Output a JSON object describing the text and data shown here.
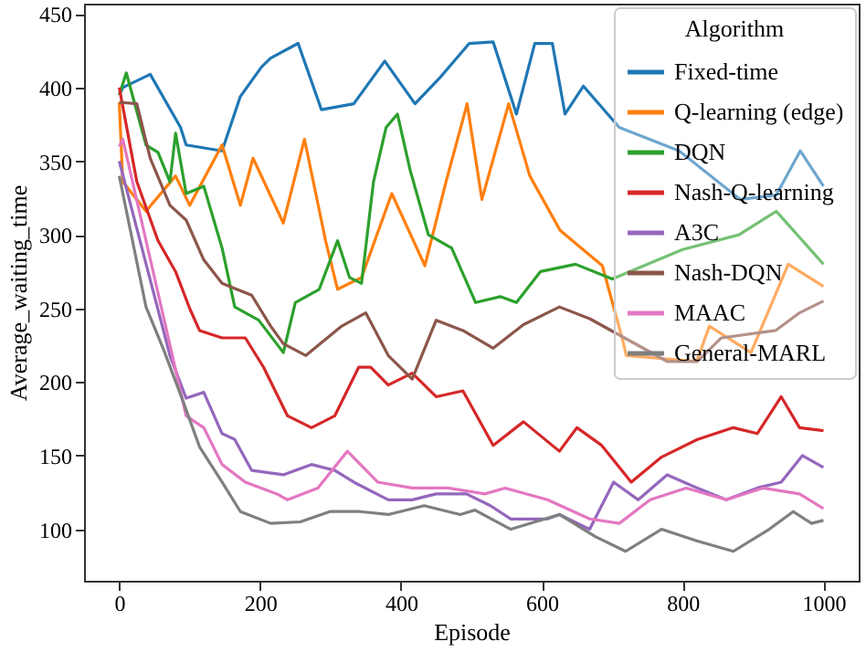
{
  "chart_data": {
    "type": "line",
    "xlabel": "Episode",
    "ylabel": "Average_waiting_time",
    "legend_title": "Algorithm",
    "legend": "top right",
    "grid": false,
    "xlim": [
      -50,
      1050
    ],
    "ylim": [
      65,
      457
    ],
    "xticks": [
      0,
      200,
      400,
      600,
      800,
      1000
    ],
    "yticks": [
      100,
      150,
      200,
      250,
      300,
      350,
      400,
      450
    ],
    "series": [
      {
        "name": "Fixed-time",
        "color": "#1f77b4",
        "x": [
          0,
          5,
          44,
          87,
          95,
          146,
          172,
          202,
          215,
          254,
          287,
          333,
          377,
          420,
          454,
          497,
          531,
          564,
          590,
          615,
          633,
          659,
          710,
          795,
          882,
          933,
          967,
          1000
        ],
        "values": [
          395,
          400,
          409,
          373,
          361,
          357,
          394,
          414,
          420,
          430,
          385,
          389,
          418,
          389,
          406,
          430,
          431,
          382,
          430,
          430,
          382,
          401,
          373,
          357,
          324,
          327,
          357,
          333
        ]
      },
      {
        "name": "Q-learning (edge)",
        "color": "#ff7f0e",
        "x": [
          0,
          5,
          38,
          80,
          100,
          146,
          172,
          190,
          233,
          263,
          293,
          310,
          344,
          387,
          434,
          464,
          494,
          515,
          553,
          583,
          626,
          686,
          714,
          720,
          820,
          838,
          897,
          950,
          1000
        ],
        "values": [
          390,
          336,
          316,
          340,
          320,
          361,
          320,
          352,
          308,
          365,
          296,
          263,
          271,
          328,
          279,
          336,
          389,
          324,
          389,
          340,
          303,
          279,
          230,
          218,
          214,
          238,
          220,
          280,
          265
        ]
      },
      {
        "name": "DQN",
        "color": "#2ca02c",
        "x": [
          0,
          10,
          38,
          55,
          72,
          80,
          95,
          120,
          146,
          164,
          198,
          233,
          250,
          284,
          310,
          327,
          344,
          361,
          379,
          395,
          413,
          439,
          472,
          506,
          541,
          564,
          598,
          648,
          700,
          800,
          880,
          933,
          1000
        ],
        "values": [
          395,
          410,
          361,
          356,
          336,
          369,
          328,
          333,
          291,
          251,
          242,
          220,
          254,
          263,
          296,
          271,
          267,
          336,
          373,
          382,
          344,
          300,
          291,
          254,
          258,
          254,
          275,
          280,
          270,
          290,
          300,
          316,
          280
        ]
      },
      {
        "name": "Nash-Q-learning",
        "color": "#d62728",
        "x": [
          0,
          25,
          55,
          80,
          100,
          114,
          146,
          179,
          205,
          239,
          273,
          306,
          340,
          357,
          382,
          416,
          450,
          488,
          531,
          574,
          625,
          650,
          685,
          727,
          770,
          821,
          872,
          906,
          940,
          966,
          1000
        ],
        "values": [
          400,
          336,
          296,
          275,
          250,
          235,
          230,
          230,
          210,
          177,
          169,
          177,
          210,
          210,
          198,
          206,
          190,
          194,
          157,
          173,
          153,
          169,
          157,
          132,
          149,
          161,
          169,
          165,
          190,
          169,
          167
        ]
      },
      {
        "name": "A3C",
        "color": "#9467bd",
        "x": [
          0,
          72,
          95,
          120,
          146,
          164,
          188,
          233,
          273,
          306,
          333,
          382,
          416,
          450,
          493,
          527,
          556,
          608,
          625,
          668,
          702,
          737,
          778,
          821,
          862,
          906,
          940,
          970,
          1000
        ],
        "values": [
          350,
          218,
          189,
          193,
          165,
          161,
          140,
          137,
          144,
          140,
          132,
          120,
          120,
          124,
          124,
          116,
          107,
          107,
          110,
          100,
          132,
          120,
          137,
          128,
          120,
          128,
          132,
          150,
          142
        ]
      },
      {
        "name": "Nash-DQN",
        "color": "#8c564b",
        "x": [
          0,
          25,
          44,
          72,
          95,
          120,
          146,
          188,
          215,
          233,
          265,
          316,
          350,
          382,
          416,
          450,
          488,
          531,
          574,
          625,
          668,
          778,
          821,
          855,
          932,
          966,
          1000
        ],
        "values": [
          390,
          389,
          352,
          320,
          310,
          283,
          267,
          259,
          238,
          226,
          218,
          238,
          247,
          218,
          202,
          242,
          235,
          223,
          239,
          251,
          243,
          214,
          214,
          230,
          235,
          247,
          255
        ]
      },
      {
        "name": "MAAC",
        "color": "#e377c2",
        "x": [
          0,
          5,
          95,
          120,
          146,
          179,
          224,
          239,
          282,
          324,
          367,
          416,
          467,
          519,
          548,
          608,
          668,
          710,
          754,
          805,
          862,
          914,
          966,
          1000
        ],
        "values": [
          360,
          365,
          177,
          169,
          144,
          132,
          124,
          120,
          128,
          153,
          132,
          128,
          128,
          124,
          128,
          120,
          107,
          104,
          120,
          128,
          120,
          128,
          124,
          114
        ]
      },
      {
        "name": "General-MARL",
        "color": "#7f7f7f",
        "x": [
          0,
          38,
          63,
          89,
          114,
          146,
          172,
          215,
          257,
          299,
          342,
          382,
          433,
          484,
          505,
          556,
          625,
          676,
          719,
          770,
          821,
          872,
          923,
          957,
          983,
          1000
        ],
        "values": [
          340,
          251,
          222,
          189,
          156,
          132,
          112,
          104,
          105,
          112,
          112,
          110,
          116,
          110,
          113,
          100,
          110,
          95,
          85,
          100,
          92,
          85,
          100,
          112,
          104,
          106
        ]
      }
    ]
  }
}
